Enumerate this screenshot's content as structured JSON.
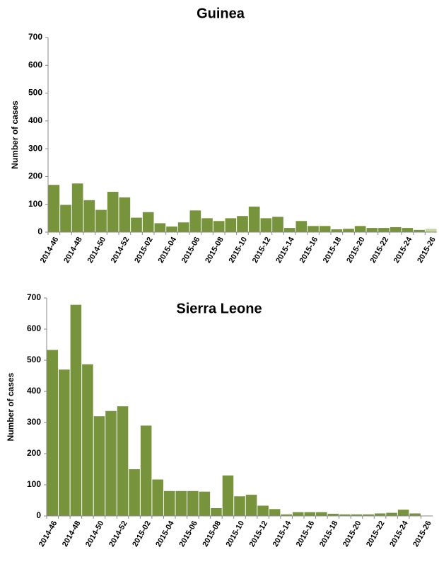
{
  "chart_data": [
    {
      "type": "bar",
      "title": "Guinea",
      "y_label": "Number of cases",
      "categories": [
        "2014-46",
        null,
        "2014-48",
        null,
        "2014-50",
        null,
        "2014-52",
        null,
        "2015-02",
        null,
        "2015-04",
        null,
        "2015-06",
        null,
        "2015-08",
        null,
        "2015-10",
        null,
        "2015-12",
        null,
        "2015-14",
        null,
        "2015-16",
        null,
        "2015-18",
        null,
        "2015-20",
        null,
        "2015-22",
        null,
        "2015-24",
        null,
        "2015-26"
      ],
      "values": [
        170,
        98,
        175,
        115,
        80,
        145,
        125,
        52,
        72,
        32,
        20,
        35,
        78,
        50,
        40,
        50,
        58,
        92,
        50,
        55,
        15,
        40,
        22,
        22,
        10,
        12,
        22,
        15,
        15,
        18,
        15,
        8,
        12
      ],
      "color": "#77933c",
      "last_color": "#c3d69b",
      "ylim": [
        0,
        700
      ],
      "yticks": [
        0,
        100,
        200,
        300,
        400,
        500,
        600,
        700
      ]
    },
    {
      "type": "bar",
      "title": "Sierra Leone",
      "y_label": "Number of cases",
      "categories": [
        "2014-46",
        null,
        "2014-48",
        null,
        "2014-50",
        null,
        "2014-52",
        null,
        "2015-02",
        null,
        "2015-04",
        null,
        "2015-06",
        null,
        "2015-08",
        null,
        "2015-10",
        null,
        "2015-12",
        null,
        "2015-14",
        null,
        "2015-16",
        null,
        "2015-18",
        null,
        "2015-20",
        null,
        "2015-22",
        null,
        "2015-24",
        null,
        "2015-26"
      ],
      "values": [
        533,
        470,
        678,
        487,
        320,
        337,
        352,
        150,
        290,
        117,
        80,
        80,
        80,
        78,
        25,
        130,
        63,
        68,
        33,
        22,
        5,
        12,
        12,
        12,
        7,
        5,
        5,
        5,
        8,
        10,
        20,
        8,
        0
      ],
      "color": "#77933c",
      "ylim": [
        0,
        700
      ],
      "yticks": [
        0,
        100,
        200,
        300,
        400,
        500,
        600,
        700
      ]
    }
  ]
}
